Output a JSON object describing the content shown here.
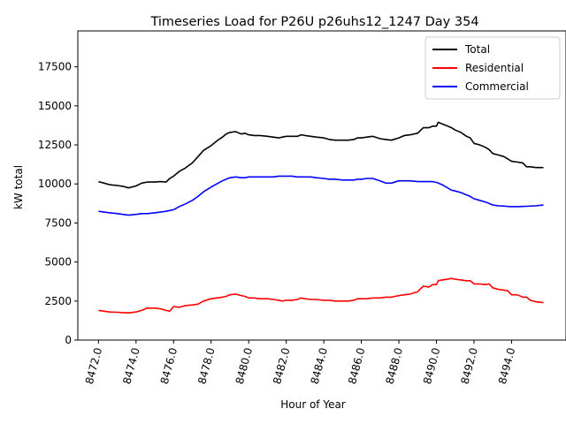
{
  "chart_data": {
    "type": "line",
    "title": "Timeseries Load for P26U p26uhs12_1247  Day 354",
    "xlabel": "Hour of Year",
    "ylabel": "kW total",
    "xlim": [
      8470.9,
      8496.9
    ],
    "ylim": [
      0,
      19800
    ],
    "x_ticks": [
      8472,
      8474,
      8476,
      8478,
      8480,
      8482,
      8484,
      8486,
      8488,
      8490,
      8492,
      8494
    ],
    "x_tick_labels": [
      "8472.0",
      "8474.0",
      "8476.0",
      "8478.0",
      "8480.0",
      "8482.0",
      "8484.0",
      "8486.0",
      "8488.0",
      "8490.0",
      "8492.0",
      "8494.0"
    ],
    "y_ticks": [
      0,
      2500,
      5000,
      7500,
      10000,
      12500,
      15000,
      17500
    ],
    "y_tick_labels": [
      "0",
      "2500",
      "5000",
      "7500",
      "10000",
      "12500",
      "15000",
      "17500"
    ],
    "legend_position": "top-right",
    "series": [
      {
        "name": "Total",
        "color": "#000000",
        "points": [
          [
            8472.0,
            10150
          ],
          [
            8472.3,
            10050
          ],
          [
            8472.6,
            9950
          ],
          [
            8473.0,
            9900
          ],
          [
            8473.3,
            9850
          ],
          [
            8473.6,
            9750
          ],
          [
            8474.0,
            9870
          ],
          [
            8474.3,
            10050
          ],
          [
            8474.6,
            10120
          ],
          [
            8475.0,
            10120
          ],
          [
            8475.3,
            10150
          ],
          [
            8475.6,
            10120
          ],
          [
            8475.8,
            10350
          ],
          [
            8476.0,
            10500
          ],
          [
            8476.3,
            10800
          ],
          [
            8476.6,
            11000
          ],
          [
            8477.0,
            11350
          ],
          [
            8477.3,
            11750
          ],
          [
            8477.6,
            12150
          ],
          [
            8478.0,
            12450
          ],
          [
            8478.3,
            12750
          ],
          [
            8478.6,
            13000
          ],
          [
            8478.8,
            13200
          ],
          [
            8479.0,
            13300
          ],
          [
            8479.3,
            13350
          ],
          [
            8479.6,
            13200
          ],
          [
            8479.8,
            13250
          ],
          [
            8480.0,
            13150
          ],
          [
            8480.3,
            13100
          ],
          [
            8480.6,
            13100
          ],
          [
            8481.0,
            13050
          ],
          [
            8481.3,
            13000
          ],
          [
            8481.6,
            12950
          ],
          [
            8481.8,
            13000
          ],
          [
            8482.0,
            13050
          ],
          [
            8482.3,
            13050
          ],
          [
            8482.6,
            13050
          ],
          [
            8482.8,
            13150
          ],
          [
            8483.0,
            13100
          ],
          [
            8483.3,
            13050
          ],
          [
            8483.6,
            13000
          ],
          [
            8484.0,
            12950
          ],
          [
            8484.3,
            12850
          ],
          [
            8484.6,
            12800
          ],
          [
            8485.0,
            12800
          ],
          [
            8485.3,
            12800
          ],
          [
            8485.6,
            12850
          ],
          [
            8485.8,
            12950
          ],
          [
            8486.0,
            12950
          ],
          [
            8486.3,
            13000
          ],
          [
            8486.6,
            13050
          ],
          [
            8487.0,
            12900
          ],
          [
            8487.3,
            12850
          ],
          [
            8487.6,
            12800
          ],
          [
            8488.0,
            12950
          ],
          [
            8488.3,
            13100
          ],
          [
            8488.6,
            13150
          ],
          [
            8489.0,
            13250
          ],
          [
            8489.3,
            13600
          ],
          [
            8489.6,
            13600
          ],
          [
            8489.8,
            13700
          ],
          [
            8490.0,
            13700
          ],
          [
            8490.1,
            13950
          ],
          [
            8490.3,
            13850
          ],
          [
            8490.6,
            13700
          ],
          [
            8490.8,
            13600
          ],
          [
            8491.0,
            13450
          ],
          [
            8491.3,
            13300
          ],
          [
            8491.6,
            13050
          ],
          [
            8491.8,
            12950
          ],
          [
            8492.0,
            12600
          ],
          [
            8492.3,
            12500
          ],
          [
            8492.6,
            12350
          ],
          [
            8492.8,
            12200
          ],
          [
            8493.0,
            11950
          ],
          [
            8493.3,
            11850
          ],
          [
            8493.6,
            11750
          ],
          [
            8493.8,
            11600
          ],
          [
            8494.0,
            11450
          ],
          [
            8494.3,
            11400
          ],
          [
            8494.6,
            11350
          ],
          [
            8494.8,
            11100
          ],
          [
            8495.0,
            11100
          ],
          [
            8495.3,
            11050
          ],
          [
            8495.7,
            11050
          ]
        ]
      },
      {
        "name": "Residential",
        "color": "#ff0000",
        "points": [
          [
            8472.0,
            1900
          ],
          [
            8472.3,
            1850
          ],
          [
            8472.6,
            1800
          ],
          [
            8473.0,
            1780
          ],
          [
            8473.3,
            1760
          ],
          [
            8473.6,
            1740
          ],
          [
            8474.0,
            1800
          ],
          [
            8474.3,
            1900
          ],
          [
            8474.6,
            2050
          ],
          [
            8475.0,
            2050
          ],
          [
            8475.3,
            2000
          ],
          [
            8475.6,
            1900
          ],
          [
            8475.8,
            1850
          ],
          [
            8476.0,
            2150
          ],
          [
            8476.3,
            2100
          ],
          [
            8476.6,
            2200
          ],
          [
            8477.0,
            2250
          ],
          [
            8477.3,
            2300
          ],
          [
            8477.6,
            2500
          ],
          [
            8478.0,
            2650
          ],
          [
            8478.3,
            2700
          ],
          [
            8478.6,
            2750
          ],
          [
            8478.8,
            2800
          ],
          [
            8479.0,
            2900
          ],
          [
            8479.3,
            2950
          ],
          [
            8479.6,
            2850
          ],
          [
            8479.8,
            2800
          ],
          [
            8480.0,
            2700
          ],
          [
            8480.3,
            2700
          ],
          [
            8480.6,
            2650
          ],
          [
            8481.0,
            2650
          ],
          [
            8481.3,
            2600
          ],
          [
            8481.6,
            2550
          ],
          [
            8481.8,
            2500
          ],
          [
            8482.0,
            2550
          ],
          [
            8482.3,
            2550
          ],
          [
            8482.6,
            2600
          ],
          [
            8482.8,
            2700
          ],
          [
            8483.0,
            2650
          ],
          [
            8483.3,
            2600
          ],
          [
            8483.6,
            2600
          ],
          [
            8484.0,
            2550
          ],
          [
            8484.3,
            2550
          ],
          [
            8484.6,
            2500
          ],
          [
            8485.0,
            2500
          ],
          [
            8485.3,
            2500
          ],
          [
            8485.6,
            2550
          ],
          [
            8485.8,
            2650
          ],
          [
            8486.0,
            2650
          ],
          [
            8486.3,
            2650
          ],
          [
            8486.6,
            2700
          ],
          [
            8487.0,
            2700
          ],
          [
            8487.3,
            2750
          ],
          [
            8487.6,
            2750
          ],
          [
            8488.0,
            2850
          ],
          [
            8488.3,
            2900
          ],
          [
            8488.6,
            2950
          ],
          [
            8489.0,
            3100
          ],
          [
            8489.3,
            3450
          ],
          [
            8489.6,
            3400
          ],
          [
            8489.8,
            3550
          ],
          [
            8490.0,
            3550
          ],
          [
            8490.1,
            3800
          ],
          [
            8490.3,
            3850
          ],
          [
            8490.6,
            3900
          ],
          [
            8490.8,
            3950
          ],
          [
            8491.0,
            3900
          ],
          [
            8491.3,
            3850
          ],
          [
            8491.6,
            3800
          ],
          [
            8491.8,
            3800
          ],
          [
            8492.0,
            3600
          ],
          [
            8492.3,
            3600
          ],
          [
            8492.6,
            3550
          ],
          [
            8492.8,
            3600
          ],
          [
            8493.0,
            3350
          ],
          [
            8493.3,
            3250
          ],
          [
            8493.6,
            3200
          ],
          [
            8493.8,
            3150
          ],
          [
            8494.0,
            2900
          ],
          [
            8494.3,
            2900
          ],
          [
            8494.6,
            2750
          ],
          [
            8494.8,
            2750
          ],
          [
            8495.0,
            2550
          ],
          [
            8495.3,
            2450
          ],
          [
            8495.7,
            2400
          ]
        ]
      },
      {
        "name": "Commercial",
        "color": "#0000ff",
        "points": [
          [
            8472.0,
            8250
          ],
          [
            8472.3,
            8200
          ],
          [
            8472.6,
            8150
          ],
          [
            8473.0,
            8100
          ],
          [
            8473.3,
            8050
          ],
          [
            8473.6,
            8000
          ],
          [
            8474.0,
            8050
          ],
          [
            8474.3,
            8100
          ],
          [
            8474.6,
            8100
          ],
          [
            8475.0,
            8150
          ],
          [
            8475.3,
            8200
          ],
          [
            8475.6,
            8250
          ],
          [
            8475.8,
            8300
          ],
          [
            8476.0,
            8350
          ],
          [
            8476.3,
            8550
          ],
          [
            8476.6,
            8700
          ],
          [
            8477.0,
            8950
          ],
          [
            8477.3,
            9200
          ],
          [
            8477.6,
            9500
          ],
          [
            8478.0,
            9800
          ],
          [
            8478.3,
            10000
          ],
          [
            8478.6,
            10200
          ],
          [
            8478.8,
            10300
          ],
          [
            8479.0,
            10400
          ],
          [
            8479.3,
            10450
          ],
          [
            8479.6,
            10400
          ],
          [
            8479.8,
            10400
          ],
          [
            8480.0,
            10450
          ],
          [
            8480.3,
            10450
          ],
          [
            8480.6,
            10450
          ],
          [
            8481.0,
            10450
          ],
          [
            8481.3,
            10450
          ],
          [
            8481.6,
            10500
          ],
          [
            8481.8,
            10500
          ],
          [
            8482.0,
            10500
          ],
          [
            8482.3,
            10500
          ],
          [
            8482.6,
            10450
          ],
          [
            8482.8,
            10450
          ],
          [
            8483.0,
            10450
          ],
          [
            8483.3,
            10450
          ],
          [
            8483.6,
            10400
          ],
          [
            8484.0,
            10350
          ],
          [
            8484.3,
            10300
          ],
          [
            8484.6,
            10300
          ],
          [
            8485.0,
            10250
          ],
          [
            8485.3,
            10250
          ],
          [
            8485.6,
            10250
          ],
          [
            8485.8,
            10300
          ],
          [
            8486.0,
            10300
          ],
          [
            8486.3,
            10350
          ],
          [
            8486.6,
            10350
          ],
          [
            8487.0,
            10200
          ],
          [
            8487.3,
            10050
          ],
          [
            8487.6,
            10050
          ],
          [
            8488.0,
            10200
          ],
          [
            8488.3,
            10200
          ],
          [
            8488.6,
            10200
          ],
          [
            8489.0,
            10150
          ],
          [
            8489.3,
            10150
          ],
          [
            8489.6,
            10150
          ],
          [
            8489.8,
            10150
          ],
          [
            8490.0,
            10100
          ],
          [
            8490.1,
            10050
          ],
          [
            8490.3,
            9950
          ],
          [
            8490.6,
            9750
          ],
          [
            8490.8,
            9600
          ],
          [
            8491.0,
            9550
          ],
          [
            8491.3,
            9450
          ],
          [
            8491.6,
            9300
          ],
          [
            8491.8,
            9200
          ],
          [
            8492.0,
            9050
          ],
          [
            8492.3,
            8950
          ],
          [
            8492.6,
            8850
          ],
          [
            8492.8,
            8750
          ],
          [
            8493.0,
            8650
          ],
          [
            8493.3,
            8600
          ],
          [
            8493.6,
            8580
          ],
          [
            8493.8,
            8560
          ],
          [
            8494.0,
            8550
          ],
          [
            8494.3,
            8550
          ],
          [
            8494.6,
            8560
          ],
          [
            8494.8,
            8570
          ],
          [
            8495.0,
            8580
          ],
          [
            8495.3,
            8600
          ],
          [
            8495.7,
            8650
          ]
        ]
      }
    ]
  }
}
